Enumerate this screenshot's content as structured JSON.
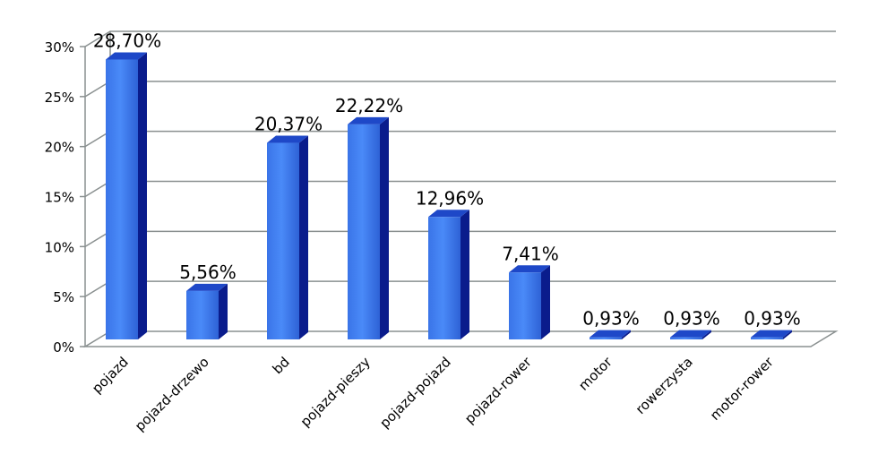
{
  "chart_data": {
    "type": "bar",
    "categories": [
      "pojazd",
      "pojazd-drzewo",
      "bd",
      "pojazd-pieszy",
      "pojazd-pojazd",
      "pojazd-rower",
      "motor",
      "rowerzysta",
      "motor-rower"
    ],
    "values": [
      28.7,
      5.56,
      20.37,
      22.22,
      12.96,
      7.41,
      0.93,
      0.93,
      0.93
    ],
    "data_labels": [
      "28,70%",
      "5,56%",
      "20,37%",
      "22,22%",
      "12,96%",
      "7,41%",
      "0,93%",
      "0,93%",
      "0,93%"
    ],
    "y_ticks": [
      "0%",
      "5%",
      "10%",
      "15%",
      "20%",
      "25%",
      "30%"
    ],
    "ylim": [
      0,
      30
    ],
    "grid": true,
    "legend": "none",
    "title": "",
    "xlabel": "",
    "ylabel": "",
    "colors": {
      "bar_front": "#3E7DF0",
      "bar_side": "#0A1C8C",
      "bar_top": "#1E48C8",
      "grid": "#8A9090",
      "axis": "#8A9090"
    }
  }
}
